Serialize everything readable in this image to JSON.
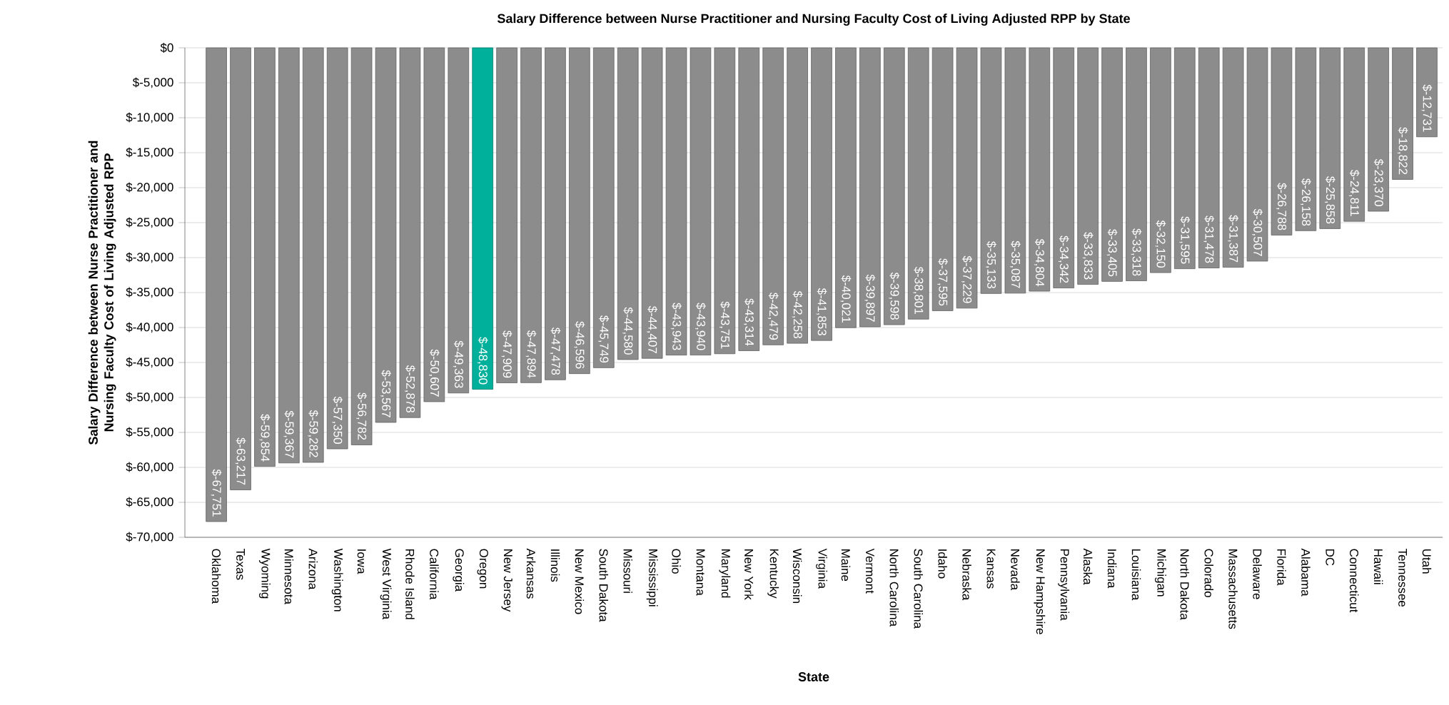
{
  "chart_data": {
    "type": "bar",
    "title": "Salary Difference between Nurse Practitioner and Nursing Faculty Cost of Living Adjusted RPP by State",
    "xlabel": "State",
    "ylabel": "Salary Difference between Nurse Practitioner and Nursing Faculty Cost of Living Adjusted RPP",
    "categories": [
      "Oklahoma",
      "Texas",
      "Wyoming",
      "Minnesota",
      "Arizona",
      "Washington",
      "Iowa",
      "West Virginia",
      "Rhode Island",
      "California",
      "Georgia",
      "Oregon",
      "New Jersey",
      "Arkansas",
      "Illinois",
      "New Mexico",
      "South Dakota",
      "Missouri",
      "Mississippi",
      "Ohio",
      "Montana",
      "Maryland",
      "New York",
      "Kentucky",
      "Wisconsin",
      "Virginia",
      "Maine",
      "Vermont",
      "North Carolina",
      "South Carolina",
      "Idaho",
      "Nebraska",
      "Kansas",
      "Nevada",
      "New Hampshire",
      "Pennsylvania",
      "Alaska",
      "Indiana",
      "Louisiana",
      "Michigan",
      "North Dakota",
      "Colorado",
      "Massachusetts",
      "Delaware",
      "Florida",
      "Alabama",
      "DC",
      "Connecticut",
      "Hawaii",
      "Tennessee",
      "Utah"
    ],
    "values": [
      -67751,
      -63217,
      -59854,
      -59367,
      -59282,
      -57350,
      -56782,
      -53567,
      -52878,
      -50607,
      -49363,
      -48830,
      -47909,
      -47894,
      -47478,
      -46596,
      -45749,
      -44580,
      -44407,
      -43943,
      -43940,
      -43751,
      -43314,
      -42479,
      -42258,
      -41853,
      -40021,
      -39897,
      -39598,
      -38801,
      -37595,
      -37229,
      -35133,
      -35087,
      -34804,
      -34342,
      -33833,
      -33405,
      -33318,
      -32150,
      -31595,
      -31478,
      -31387,
      -30507,
      -26788,
      -26158,
      -25858,
      -24811,
      -23370,
      -18822,
      -12731
    ],
    "value_labels": [
      "$-67,751",
      "$-63,217",
      "$-59,854",
      "$-59,367",
      "$-59,282",
      "$-57,350",
      "$-56,782",
      "$-53,567",
      "$-52,878",
      "$-50,607",
      "$-49,363",
      "$-48,830",
      "$-47,909",
      "$-47,894",
      "$-47,478",
      "$-46,596",
      "$-45,749",
      "$-44,580",
      "$-44,407",
      "$-43,943",
      "$-43,940",
      "$-43,751",
      "$-43,314",
      "$-42,479",
      "$-42,258",
      "$-41,853",
      "$-40,021",
      "$-39,897",
      "$-39,598",
      "$-38,801",
      "$-37,595",
      "$-37,229",
      "$-35,133",
      "$-35,087",
      "$-34,804",
      "$-34,342",
      "$-33,833",
      "$-33,405",
      "$-33,318",
      "$-32,150",
      "$-31,595",
      "$-31,478",
      "$-31,387",
      "$-30,507",
      "$-26,788",
      "$-26,158",
      "$-25,858",
      "$-24,811",
      "$-23,370",
      "$-18,822",
      "$-12,731"
    ],
    "colors": [
      "#8c8c8c",
      "#8c8c8c",
      "#8c8c8c",
      "#8c8c8c",
      "#8c8c8c",
      "#8c8c8c",
      "#8c8c8c",
      "#8c8c8c",
      "#8c8c8c",
      "#8c8c8c",
      "#8c8c8c",
      "#00b09b",
      "#8c8c8c",
      "#8c8c8c",
      "#8c8c8c",
      "#8c8c8c",
      "#8c8c8c",
      "#8c8c8c",
      "#8c8c8c",
      "#8c8c8c",
      "#8c8c8c",
      "#8c8c8c",
      "#8c8c8c",
      "#8c8c8c",
      "#8c8c8c",
      "#8c8c8c",
      "#8c8c8c",
      "#8c8c8c",
      "#8c8c8c",
      "#8c8c8c",
      "#8c8c8c",
      "#8c8c8c",
      "#8c8c8c",
      "#8c8c8c",
      "#8c8c8c",
      "#8c8c8c",
      "#8c8c8c",
      "#8c8c8c",
      "#8c8c8c",
      "#8c8c8c",
      "#8c8c8c",
      "#8c8c8c",
      "#8c8c8c",
      "#8c8c8c",
      "#8c8c8c",
      "#8c8c8c",
      "#8c8c8c",
      "#8c8c8c",
      "#8c8c8c",
      "#8c8c8c",
      "#8c8c8c"
    ],
    "ylim": [
      -70000,
      0
    ],
    "yticks": [
      {
        "value": 0,
        "label": "$0"
      },
      {
        "value": -5000,
        "label": "$-5,000"
      },
      {
        "value": -10000,
        "label": "$-10,000"
      },
      {
        "value": -15000,
        "label": "$-15,000"
      },
      {
        "value": -20000,
        "label": "$-20,000"
      },
      {
        "value": -25000,
        "label": "$-25,000"
      },
      {
        "value": -30000,
        "label": "$-30,000"
      },
      {
        "value": -35000,
        "label": "$-35,000"
      },
      {
        "value": -40000,
        "label": "$-40,000"
      },
      {
        "value": -45000,
        "label": "$-45,000"
      },
      {
        "value": -50000,
        "label": "$-50,000"
      },
      {
        "value": -55000,
        "label": "$-55,000"
      },
      {
        "value": -60000,
        "label": "$-60,000"
      },
      {
        "value": -65000,
        "label": "$-65,000"
      },
      {
        "value": -70000,
        "label": "$-70,000"
      }
    ],
    "grid": "y"
  }
}
